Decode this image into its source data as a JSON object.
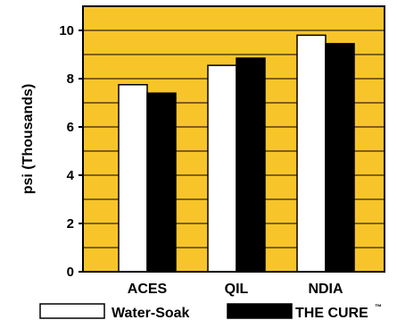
{
  "chart_data": {
    "type": "bar",
    "categories": [
      "ACES",
      "QIL",
      "NDIA"
    ],
    "series": [
      {
        "name": "Water-Soak",
        "values": [
          7.75,
          8.55,
          9.8
        ],
        "color": "#ffffff"
      },
      {
        "name": "THE CURE",
        "values": [
          7.4,
          8.85,
          9.45
        ],
        "color": "#000000"
      }
    ],
    "ylabel": "psi (Thousands)",
    "ylim": [
      0,
      11
    ],
    "yticks": [
      0,
      2,
      4,
      6,
      8,
      10
    ],
    "grid": true,
    "legend_position": "bottom",
    "legend_trademark": "™",
    "background_color": "#f7c52a"
  }
}
